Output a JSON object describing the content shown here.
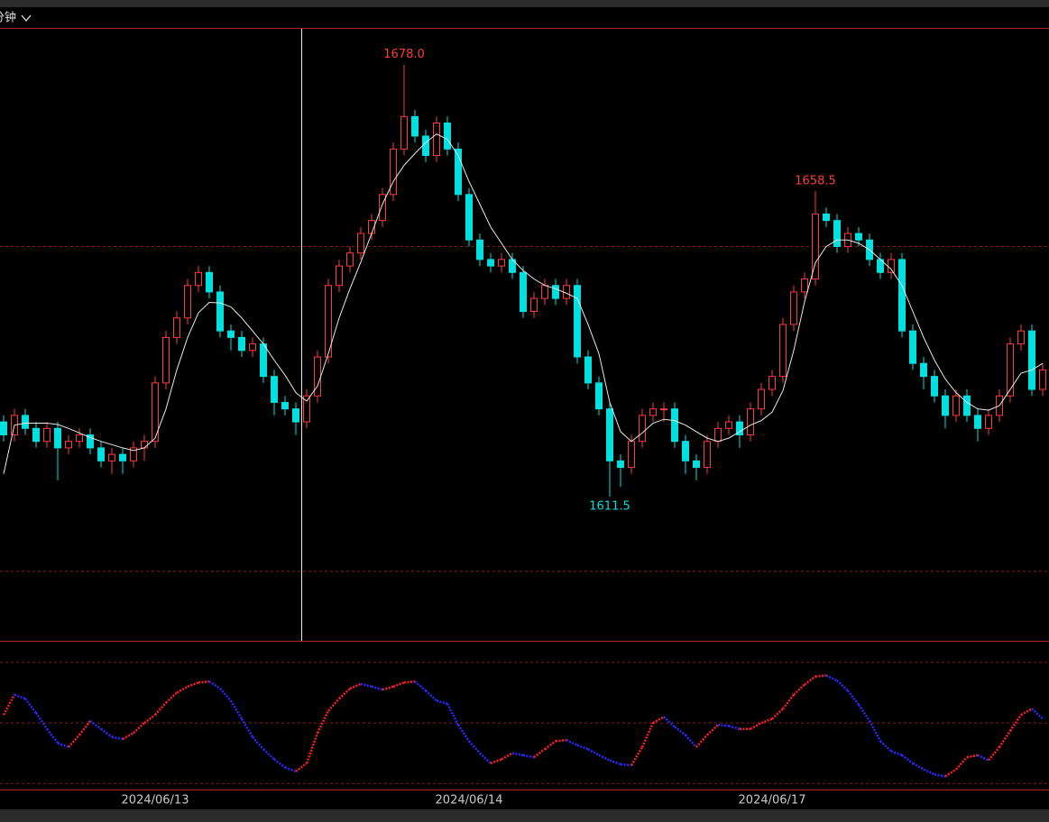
{
  "header": {
    "interval": "分钟"
  },
  "chart_data": [
    {
      "type": "candlestick",
      "categories": [
        null,
        null,
        null,
        null,
        null,
        null,
        null,
        null,
        null,
        null,
        null,
        null,
        null,
        null,
        "2024/06/13",
        null,
        null,
        null,
        null,
        null,
        null,
        null,
        null,
        null,
        null,
        null,
        null,
        null,
        null,
        null,
        null,
        null,
        null,
        null,
        null,
        null,
        null,
        null,
        null,
        null,
        null,
        null,
        null,
        "2024/06/14",
        null,
        null,
        null,
        null,
        null,
        null,
        null,
        null,
        null,
        null,
        null,
        null,
        null,
        null,
        null,
        null,
        null,
        null,
        null,
        null,
        null,
        null,
        null,
        null,
        null,
        null,
        null,
        "2024/06/17",
        null,
        null,
        null,
        null,
        null,
        null,
        null,
        null,
        null,
        null,
        null,
        null,
        null,
        null,
        null,
        null,
        null,
        null,
        null,
        null,
        null,
        null,
        null,
        null,
        null
      ],
      "open": [
        1623,
        1621,
        1624,
        1622,
        1620,
        1622,
        1619,
        1620,
        1621,
        1619,
        1617,
        1618,
        1617,
        1619,
        1620,
        1629,
        1636,
        1639,
        1644,
        1646,
        1643,
        1637,
        1636,
        1634,
        1635,
        1630,
        1626,
        1625,
        1623,
        1627,
        1633,
        1644,
        1647,
        1649,
        1652,
        1654,
        1658,
        1665,
        1670,
        1667,
        1664,
        1669,
        1665,
        1658,
        1651,
        1648,
        1647,
        1648,
        1646,
        1640,
        1642,
        1644,
        1642,
        1644,
        1633,
        1629,
        1625,
        1617,
        1616,
        1620,
        1624,
        1625,
        1625,
        1620,
        1617,
        1616,
        1620,
        1622,
        1623,
        1621,
        1625,
        1628,
        1630,
        1638,
        1643,
        1645,
        1655,
        1654,
        1650,
        1652,
        1651,
        1648,
        1646,
        1648,
        1637,
        1632,
        1630,
        1627,
        1624,
        1627,
        1624,
        1622,
        1624,
        1627,
        1635,
        1637,
        1628
      ],
      "high": [
        1624,
        1625,
        1625,
        1623,
        1623,
        1623,
        1621,
        1622,
        1622,
        1620,
        1619,
        1619,
        1620,
        1621,
        1630,
        1637,
        1640,
        1645,
        1647,
        1647,
        1644,
        1638,
        1637,
        1636,
        1636,
        1631,
        1627,
        1626,
        1628,
        1634,
        1645,
        1648,
        1650,
        1653,
        1655,
        1659,
        1666,
        1678.0,
        1671,
        1668,
        1670,
        1670,
        1666,
        1659,
        1652,
        1649,
        1649,
        1649,
        1647,
        1643,
        1645,
        1645,
        1645,
        1645,
        1634,
        1630,
        1626,
        1618,
        1621,
        1625,
        1626,
        1626,
        1626,
        1621,
        1618,
        1621,
        1623,
        1624,
        1624,
        1626,
        1629,
        1631,
        1639,
        1644,
        1646,
        1658.5,
        1656,
        1655,
        1653,
        1653,
        1652,
        1649,
        1649,
        1649,
        1638,
        1633,
        1631,
        1628,
        1628,
        1628,
        1625,
        1625,
        1628,
        1636,
        1638,
        1638,
        1632
      ],
      "low": [
        1620,
        1620,
        1621,
        1619,
        1619,
        1614,
        1618,
        1619,
        1618,
        1616,
        1615,
        1615,
        1616,
        1617,
        1619,
        1628,
        1635,
        1638,
        1643,
        1642,
        1636,
        1634,
        1633,
        1633,
        1629,
        1624,
        1624,
        1621,
        1622,
        1626,
        1632,
        1643,
        1646,
        1648,
        1651,
        1653,
        1657,
        1664,
        1666,
        1663,
        1663,
        1664,
        1657,
        1650,
        1647,
        1646,
        1646,
        1645,
        1639,
        1639,
        1641,
        1641,
        1641,
        1632,
        1628,
        1624,
        1611.5,
        1613,
        1615,
        1619,
        1623,
        1623,
        1619,
        1615,
        1614,
        1615,
        1619,
        1621,
        1619,
        1620,
        1624,
        1627,
        1629,
        1637,
        1642,
        1644,
        1653,
        1649,
        1649,
        1650,
        1647,
        1645,
        1645,
        1636,
        1631,
        1628,
        1626,
        1622,
        1623,
        1623,
        1620,
        1621,
        1623,
        1626,
        1634,
        1627,
        1627
      ],
      "close": [
        1621,
        1624,
        1622,
        1620,
        1622,
        1619,
        1620,
        1621,
        1619,
        1617,
        1618,
        1617,
        1619,
        1620,
        1629,
        1636,
        1639,
        1644,
        1646,
        1643,
        1637,
        1636,
        1634,
        1635,
        1630,
        1626,
        1625,
        1623,
        1627,
        1633,
        1644,
        1647,
        1649,
        1652,
        1654,
        1658,
        1665,
        1670,
        1667,
        1664,
        1669,
        1665,
        1658,
        1651,
        1648,
        1647,
        1648,
        1646,
        1640,
        1642,
        1644,
        1642,
        1644,
        1633,
        1629,
        1625,
        1617,
        1616,
        1620,
        1624,
        1625,
        1625,
        1620,
        1617,
        1616,
        1620,
        1622,
        1623,
        1621,
        1625,
        1628,
        1630,
        1638,
        1643,
        1645,
        1655,
        1654,
        1650,
        1652,
        1651,
        1648,
        1646,
        1648,
        1637,
        1632,
        1630,
        1627,
        1624,
        1627,
        1624,
        1622,
        1624,
        1627,
        1635,
        1637,
        1628,
        1631
      ],
      "up_color": "#ff3b3b",
      "down_color": "#00e0e0",
      "ma": {
        "color": "#e8e8e8",
        "values": [
          1615,
          1622.5,
          1622.8,
          1622.8,
          1622.8,
          1622.6,
          1622,
          1621.3,
          1620.6,
          1620,
          1619.5,
          1619,
          1618.6,
          1619,
          1620.5,
          1625,
          1631,
          1636,
          1639.8,
          1641.4,
          1641.3,
          1640.7,
          1639,
          1637,
          1635,
          1632.5,
          1630.2,
          1627.5,
          1626.2,
          1628.5,
          1633.5,
          1639,
          1643.5,
          1647.6,
          1652,
          1656.5,
          1660,
          1662.5,
          1664.3,
          1666,
          1667.3,
          1666.5,
          1664,
          1660,
          1656.5,
          1653,
          1650.5,
          1648,
          1646.3,
          1645,
          1644,
          1643.5,
          1642.8,
          1642,
          1638,
          1633.5,
          1626,
          1621.5,
          1620,
          1621.3,
          1622.8,
          1623.4,
          1623.2,
          1622.5,
          1621.5,
          1620.5,
          1620,
          1620.5,
          1621.5,
          1622.5,
          1623.2,
          1624.5,
          1627.8,
          1634,
          1641.5,
          1647.5,
          1650,
          1651,
          1651,
          1650.5,
          1649.5,
          1648,
          1646.5,
          1644,
          1640,
          1636,
          1632.5,
          1629.6,
          1627.5,
          1626,
          1625,
          1624.8,
          1625.5,
          1628,
          1630.5,
          1631,
          1632
        ]
      },
      "annotations": [
        {
          "value": 1678.0,
          "label": "1678.0"
        },
        {
          "value": 1658.5,
          "label": "1658.5"
        },
        {
          "value": 1611.5,
          "label": "1611.5"
        }
      ],
      "ylim": [
        1589.3,
        1683.5
      ],
      "yticks": [
        1600,
        1650
      ],
      "grid": true
    },
    {
      "type": "line",
      "values": [
        54,
        64,
        62,
        55,
        47,
        40,
        38,
        44,
        51,
        47,
        43,
        42,
        45,
        50,
        54,
        60,
        65,
        68,
        70,
        70.5,
        67,
        61,
        52,
        43,
        37,
        32,
        28,
        26,
        30,
        45,
        56,
        62,
        67,
        69.3,
        68,
        66.5,
        68,
        70,
        70.5,
        66,
        61,
        59.5,
        49,
        41,
        35,
        30,
        32,
        35,
        34,
        33,
        37,
        41,
        41.5,
        39,
        37,
        34,
        31.5,
        29.5,
        29,
        38,
        50,
        53,
        48,
        44,
        38,
        44,
        49,
        48.5,
        47,
        47,
        50,
        52,
        57,
        64,
        69,
        73,
        73.5,
        71,
        66,
        59,
        51,
        41,
        36,
        34,
        30,
        27,
        24.5,
        23.5,
        27,
        33,
        34,
        31.5,
        38,
        46,
        54,
        57,
        52
      ],
      "up_color": "#ff2020",
      "down_color": "#2a2aff",
      "ylim": [
        17,
        90.2
      ],
      "yticks": [
        20,
        50,
        80
      ],
      "grid": true
    }
  ]
}
